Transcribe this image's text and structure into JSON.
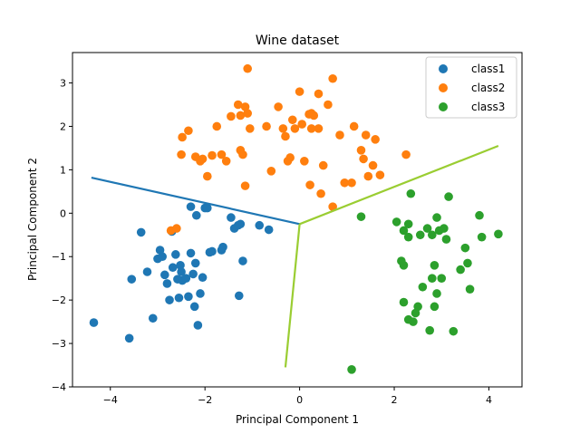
{
  "chart_data": {
    "type": "scatter",
    "title": "Wine dataset",
    "xlabel": "Principal Component 1",
    "ylabel": "Principal Component 2",
    "xlim": [
      -4.8,
      4.7
    ],
    "ylim": [
      -4.0,
      3.7
    ],
    "x_ticks": [
      -4,
      -2,
      0,
      2,
      4
    ],
    "y_ticks": [
      -4,
      -3,
      -2,
      -1,
      0,
      1,
      2,
      3
    ],
    "x_tick_labels": [
      "−4",
      "−2",
      "0",
      "2",
      "4"
    ],
    "y_tick_labels": [
      "−4",
      "−3",
      "−2",
      "−1",
      "0",
      "1",
      "2",
      "3"
    ],
    "grid": false,
    "legend_position": "top-right",
    "series": [
      {
        "name": "class1",
        "color": "#1f77b4",
        "points": [
          [
            -4.35,
            -2.52
          ],
          [
            -3.6,
            -2.88
          ],
          [
            -3.55,
            -1.52
          ],
          [
            -3.35,
            -0.44
          ],
          [
            -3.22,
            -1.35
          ],
          [
            -3.1,
            -2.42
          ],
          [
            -3.0,
            -1.05
          ],
          [
            -2.95,
            -0.85
          ],
          [
            -2.9,
            -1.0
          ],
          [
            -2.85,
            -1.42
          ],
          [
            -2.8,
            -1.62
          ],
          [
            -2.75,
            -2.0
          ],
          [
            -2.7,
            -0.42
          ],
          [
            -2.68,
            -1.25
          ],
          [
            -2.62,
            -0.95
          ],
          [
            -2.58,
            -1.52
          ],
          [
            -2.55,
            -1.95
          ],
          [
            -2.52,
            -1.2
          ],
          [
            -2.5,
            -1.35
          ],
          [
            -2.48,
            -1.55
          ],
          [
            -2.4,
            -1.5
          ],
          [
            -2.35,
            -1.92
          ],
          [
            -2.3,
            0.15
          ],
          [
            -2.3,
            -0.92
          ],
          [
            -2.25,
            -1.4
          ],
          [
            -2.22,
            -2.15
          ],
          [
            -2.2,
            -1.15
          ],
          [
            -2.18,
            -0.05
          ],
          [
            -2.15,
            -2.58
          ],
          [
            -2.1,
            -1.85
          ],
          [
            -2.05,
            -1.48
          ],
          [
            -2.0,
            0.12
          ],
          [
            -1.95,
            0.12
          ],
          [
            -1.9,
            -0.9
          ],
          [
            -1.85,
            -0.88
          ],
          [
            -1.65,
            -0.85
          ],
          [
            -1.62,
            -0.78
          ],
          [
            -1.45,
            -0.1
          ],
          [
            -1.38,
            -0.35
          ],
          [
            -1.3,
            -0.28
          ],
          [
            -1.28,
            -1.9
          ],
          [
            -1.25,
            -0.25
          ],
          [
            -1.2,
            -1.1
          ],
          [
            -0.85,
            -0.28
          ],
          [
            -0.65,
            -0.38
          ]
        ]
      },
      {
        "name": "class2",
        "color": "#ff7f0e",
        "points": [
          [
            -2.72,
            -0.4
          ],
          [
            -2.6,
            -0.35
          ],
          [
            -2.5,
            1.35
          ],
          [
            -2.48,
            1.75
          ],
          [
            -2.35,
            1.9
          ],
          [
            -2.2,
            1.3
          ],
          [
            -2.1,
            1.2
          ],
          [
            -2.05,
            1.25
          ],
          [
            -1.95,
            0.85
          ],
          [
            -1.85,
            1.33
          ],
          [
            -1.75,
            2.0
          ],
          [
            -1.65,
            1.35
          ],
          [
            -1.55,
            1.2
          ],
          [
            -1.45,
            2.23
          ],
          [
            -1.3,
            2.5
          ],
          [
            -1.25,
            1.45
          ],
          [
            -1.25,
            2.25
          ],
          [
            -1.2,
            1.35
          ],
          [
            -1.15,
            2.45
          ],
          [
            -1.15,
            0.63
          ],
          [
            -1.1,
            2.3
          ],
          [
            -1.05,
            1.95
          ],
          [
            -1.1,
            3.33
          ],
          [
            -0.7,
            2.0
          ],
          [
            -0.6,
            0.97
          ],
          [
            -0.45,
            2.45
          ],
          [
            -0.35,
            1.95
          ],
          [
            -0.3,
            1.77
          ],
          [
            -0.25,
            1.2
          ],
          [
            -0.2,
            1.28
          ],
          [
            -0.15,
            2.15
          ],
          [
            -0.1,
            1.95
          ],
          [
            0.0,
            2.8
          ],
          [
            0.05,
            2.05
          ],
          [
            0.1,
            1.2
          ],
          [
            0.2,
            2.28
          ],
          [
            0.22,
            0.65
          ],
          [
            0.25,
            1.95
          ],
          [
            0.25,
            2.3
          ],
          [
            0.3,
            2.25
          ],
          [
            0.4,
            1.95
          ],
          [
            0.4,
            2.75
          ],
          [
            0.45,
            0.45
          ],
          [
            0.5,
            1.1
          ],
          [
            0.6,
            2.5
          ],
          [
            0.7,
            3.1
          ],
          [
            0.7,
            0.15
          ],
          [
            0.85,
            1.8
          ],
          [
            0.95,
            0.7
          ],
          [
            1.1,
            0.7
          ],
          [
            1.15,
            2.0
          ],
          [
            1.3,
            1.45
          ],
          [
            1.35,
            1.25
          ],
          [
            1.4,
            1.8
          ],
          [
            1.45,
            0.85
          ],
          [
            1.55,
            1.1
          ],
          [
            1.6,
            1.7
          ],
          [
            1.7,
            0.88
          ],
          [
            2.25,
            1.35
          ]
        ]
      },
      {
        "name": "class3",
        "color": "#2ca02c",
        "points": [
          [
            1.1,
            -3.6
          ],
          [
            1.3,
            -0.08
          ],
          [
            2.05,
            -0.2
          ],
          [
            2.15,
            -1.1
          ],
          [
            2.2,
            -1.2
          ],
          [
            2.2,
            -0.4
          ],
          [
            2.2,
            -2.05
          ],
          [
            2.3,
            -0.25
          ],
          [
            2.3,
            -0.55
          ],
          [
            2.3,
            -2.45
          ],
          [
            2.35,
            0.45
          ],
          [
            2.4,
            -2.5
          ],
          [
            2.45,
            -2.3
          ],
          [
            2.5,
            -2.15
          ],
          [
            2.55,
            -0.5
          ],
          [
            2.6,
            -1.7
          ],
          [
            2.7,
            -0.35
          ],
          [
            2.75,
            -2.7
          ],
          [
            2.8,
            -1.5
          ],
          [
            2.8,
            -0.5
          ],
          [
            2.85,
            -2.15
          ],
          [
            2.85,
            -1.2
          ],
          [
            2.9,
            -1.85
          ],
          [
            2.9,
            -0.1
          ],
          [
            2.95,
            -0.4
          ],
          [
            3.0,
            -1.5
          ],
          [
            3.05,
            -0.35
          ],
          [
            3.1,
            -0.6
          ],
          [
            3.15,
            0.38
          ],
          [
            3.25,
            -2.72
          ],
          [
            3.4,
            -1.3
          ],
          [
            3.5,
            -0.8
          ],
          [
            3.55,
            -1.15
          ],
          [
            3.6,
            -1.75
          ],
          [
            3.8,
            -0.05
          ],
          [
            3.85,
            -0.55
          ],
          [
            4.2,
            -0.48
          ]
        ]
      }
    ],
    "lines": [
      {
        "name": "boundary-1",
        "color": "#1f77b4",
        "points": [
          [
            -4.4,
            0.82
          ],
          [
            0.0,
            -0.25
          ]
        ]
      },
      {
        "name": "boundary-2",
        "color": "#9acd32",
        "points": [
          [
            0.0,
            -0.25
          ],
          [
            4.2,
            1.55
          ]
        ]
      },
      {
        "name": "boundary-3",
        "color": "#9acd32",
        "points": [
          [
            0.0,
            -0.25
          ],
          [
            -0.3,
            -3.55
          ]
        ]
      }
    ]
  }
}
